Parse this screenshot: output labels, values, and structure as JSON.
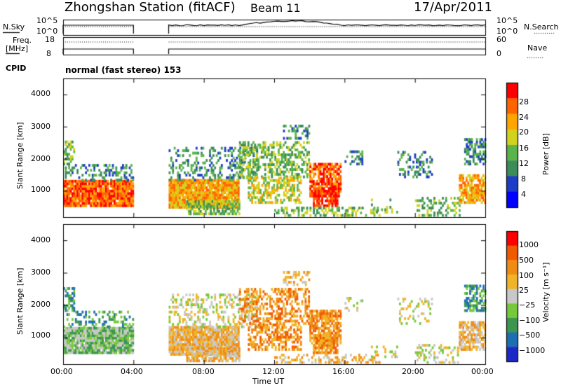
{
  "title": {
    "station": "Zhongshan Station (fitACF)",
    "beam": "Beam 11",
    "date": "17/Apr/2011"
  },
  "header": {
    "nsky_label": "N.Sky",
    "nsky_ticks": [
      "10^5",
      "10^0"
    ],
    "nsearch_label": "N.Search",
    "nsearch_ticks": [
      "10^5",
      "10^0"
    ],
    "freq_label": "Freq.",
    "freq_unit": "[MHz]",
    "freq_ticks": [
      "18",
      "8"
    ],
    "nave_label": "Nave",
    "nave_ticks": [
      "60",
      "0"
    ],
    "cpid_label": "CPID",
    "cpid_value": "normal (fast stereo) 153"
  },
  "colors": {
    "power_scale": [
      "#0000ff",
      "#1e3cc8",
      "#3c8c5a",
      "#5ab44a",
      "#d2d21e",
      "#ffa500",
      "#ff6400",
      "#ff0000"
    ],
    "velocity_scale": [
      "#1e28c8",
      "#1e6eb4",
      "#3c9650",
      "#78c83c",
      "#c8c8c8",
      "#f0b428",
      "#f08c14",
      "#f05a00",
      "#ff0000"
    ]
  },
  "chart_data": [
    {
      "type": "heatmap",
      "name": "power",
      "ylabel": "Slant Range [km]",
      "ylim": [
        180,
        4500
      ],
      "yticks": [
        "4000",
        "3000",
        "2000",
        "1000"
      ],
      "xlim": [
        0,
        24
      ],
      "xticks": [
        "00:00",
        "04:00",
        "08:00",
        "12:00",
        "16:00",
        "20:00",
        "00:00"
      ],
      "colorbar": {
        "label": "Power [dB]",
        "ticks": [
          "28",
          "24",
          "20",
          "16",
          "12",
          "8",
          "4"
        ],
        "range": [
          0,
          32
        ]
      },
      "data_gap_hours": [
        4,
        6
      ]
    },
    {
      "type": "heatmap",
      "name": "velocity",
      "ylabel": "Slant Range [km]",
      "ylim": [
        180,
        4500
      ],
      "yticks": [
        "4000",
        "3000",
        "2000",
        "1000"
      ],
      "xlim": [
        0,
        24
      ],
      "xlabel": "Time UT",
      "xticks": [
        "00:00",
        "04:00",
        "08:00",
        "12:00",
        "16:00",
        "20:00",
        "00:00"
      ],
      "colorbar": {
        "label": "Velocity [m s⁻¹]",
        "ticks": [
          "1000",
          "500",
          "100",
          "25",
          "−25",
          "−100",
          "−500",
          "−1000"
        ]
      },
      "data_gap_hours": [
        4,
        6
      ]
    }
  ]
}
